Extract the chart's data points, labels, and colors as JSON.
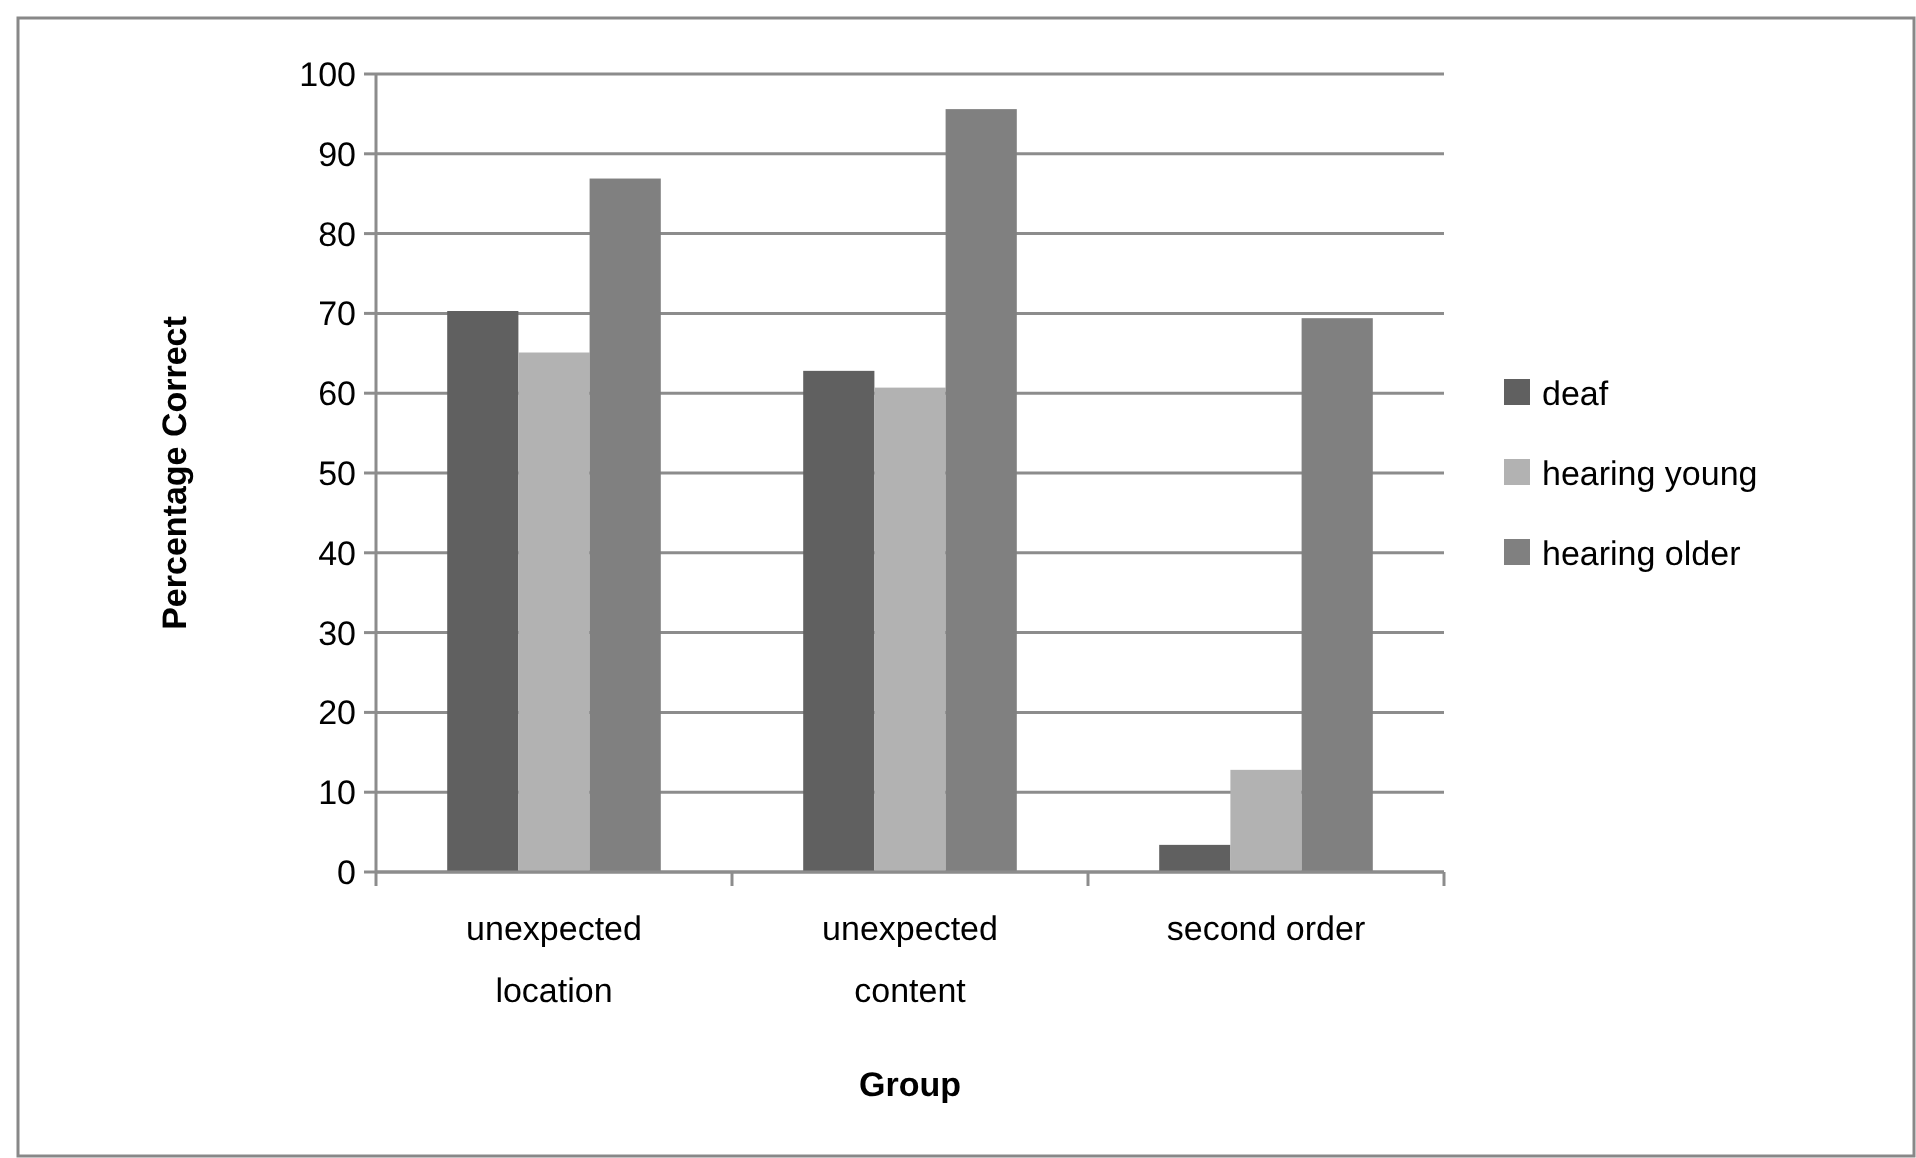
{
  "chart_data": {
    "type": "bar",
    "xlabel": "Group",
    "ylabel": "Percentage Correct",
    "categories": [
      "unexpected location",
      "unexpected content",
      "second order"
    ],
    "series": [
      {
        "name": "deaf",
        "color": "#606060",
        "values": [
          70.3,
          62.8,
          3.4
        ]
      },
      {
        "name": "hearing young",
        "color": "#b2b2b2",
        "values": [
          65.1,
          60.7,
          12.8
        ]
      },
      {
        "name": "hearing older",
        "color": "#808080",
        "values": [
          86.9,
          95.6,
          69.4
        ]
      }
    ],
    "ylim": [
      0,
      100
    ],
    "yticks": [
      0,
      10,
      20,
      30,
      40,
      50,
      60,
      70,
      80,
      90,
      100
    ],
    "grid": "y",
    "legend": "right"
  }
}
